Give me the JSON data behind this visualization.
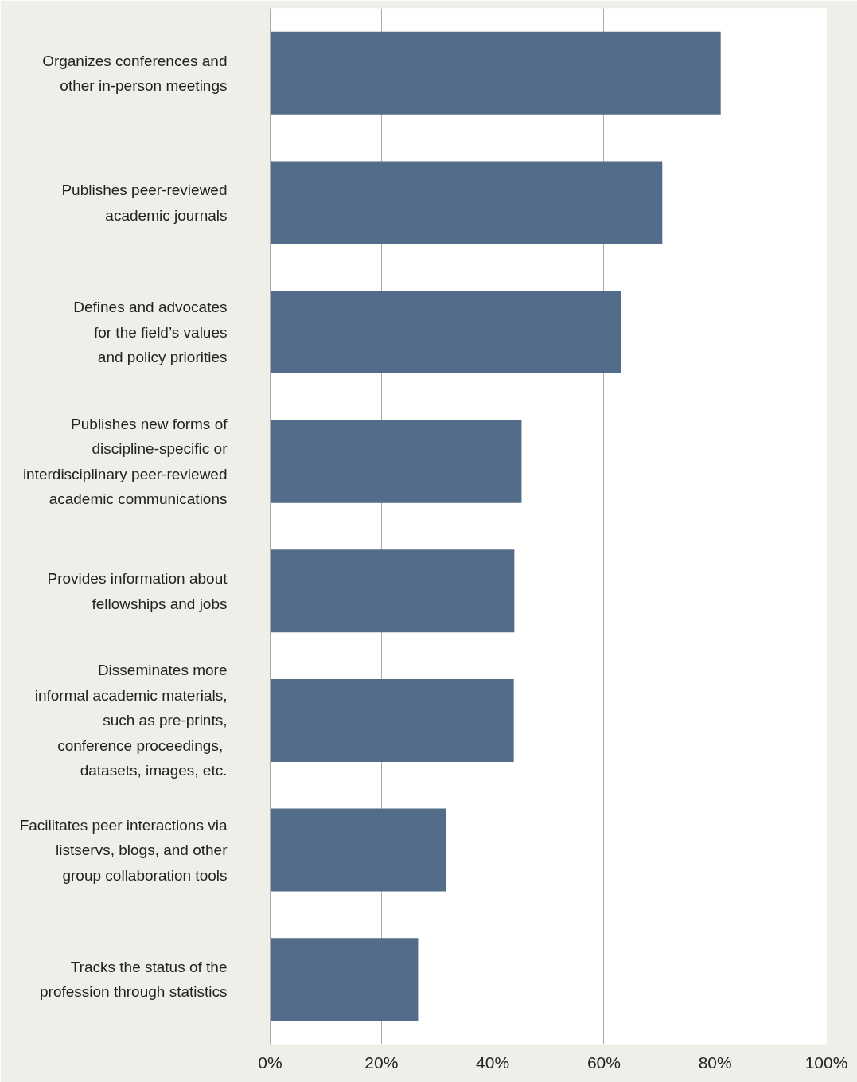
{
  "chart_data": {
    "type": "bar",
    "orientation": "horizontal",
    "categories": [
      "Organizes conferences and\nother in-person meetings",
      "Publishes peer-reviewed\nacademic journals",
      "Defines and advocates\nfor the field’s values\nand policy priorities",
      "Publishes new forms of\ndiscipline-specific or\ninterdisciplinary peer-reviewed\nacademic communications",
      "Provides information about\nfellowships and jobs",
      "Disseminates more\ninformal academic materials,\nsuch as pre-prints,\nconference  proceedings,\ndatasets, images, etc.",
      "Facilitates peer interactions via\nlistservs, blogs, and other\ngroup collaboration tools",
      "Tracks the status of the\nprofession through statistics"
    ],
    "values": [
      81.0,
      70.5,
      63.1,
      45.2,
      43.9,
      43.8,
      31.6,
      26.6
    ],
    "color": "#536c89",
    "xlim": [
      0,
      100
    ],
    "xticks": [
      {
        "value": 0,
        "label": "0%"
      },
      {
        "value": 20,
        "label": "20%"
      },
      {
        "value": 40,
        "label": "40%"
      },
      {
        "value": 60,
        "label": "60%"
      },
      {
        "value": 80,
        "label": "80%"
      },
      {
        "value": 100,
        "label": "100%"
      }
    ],
    "grid": "x"
  }
}
